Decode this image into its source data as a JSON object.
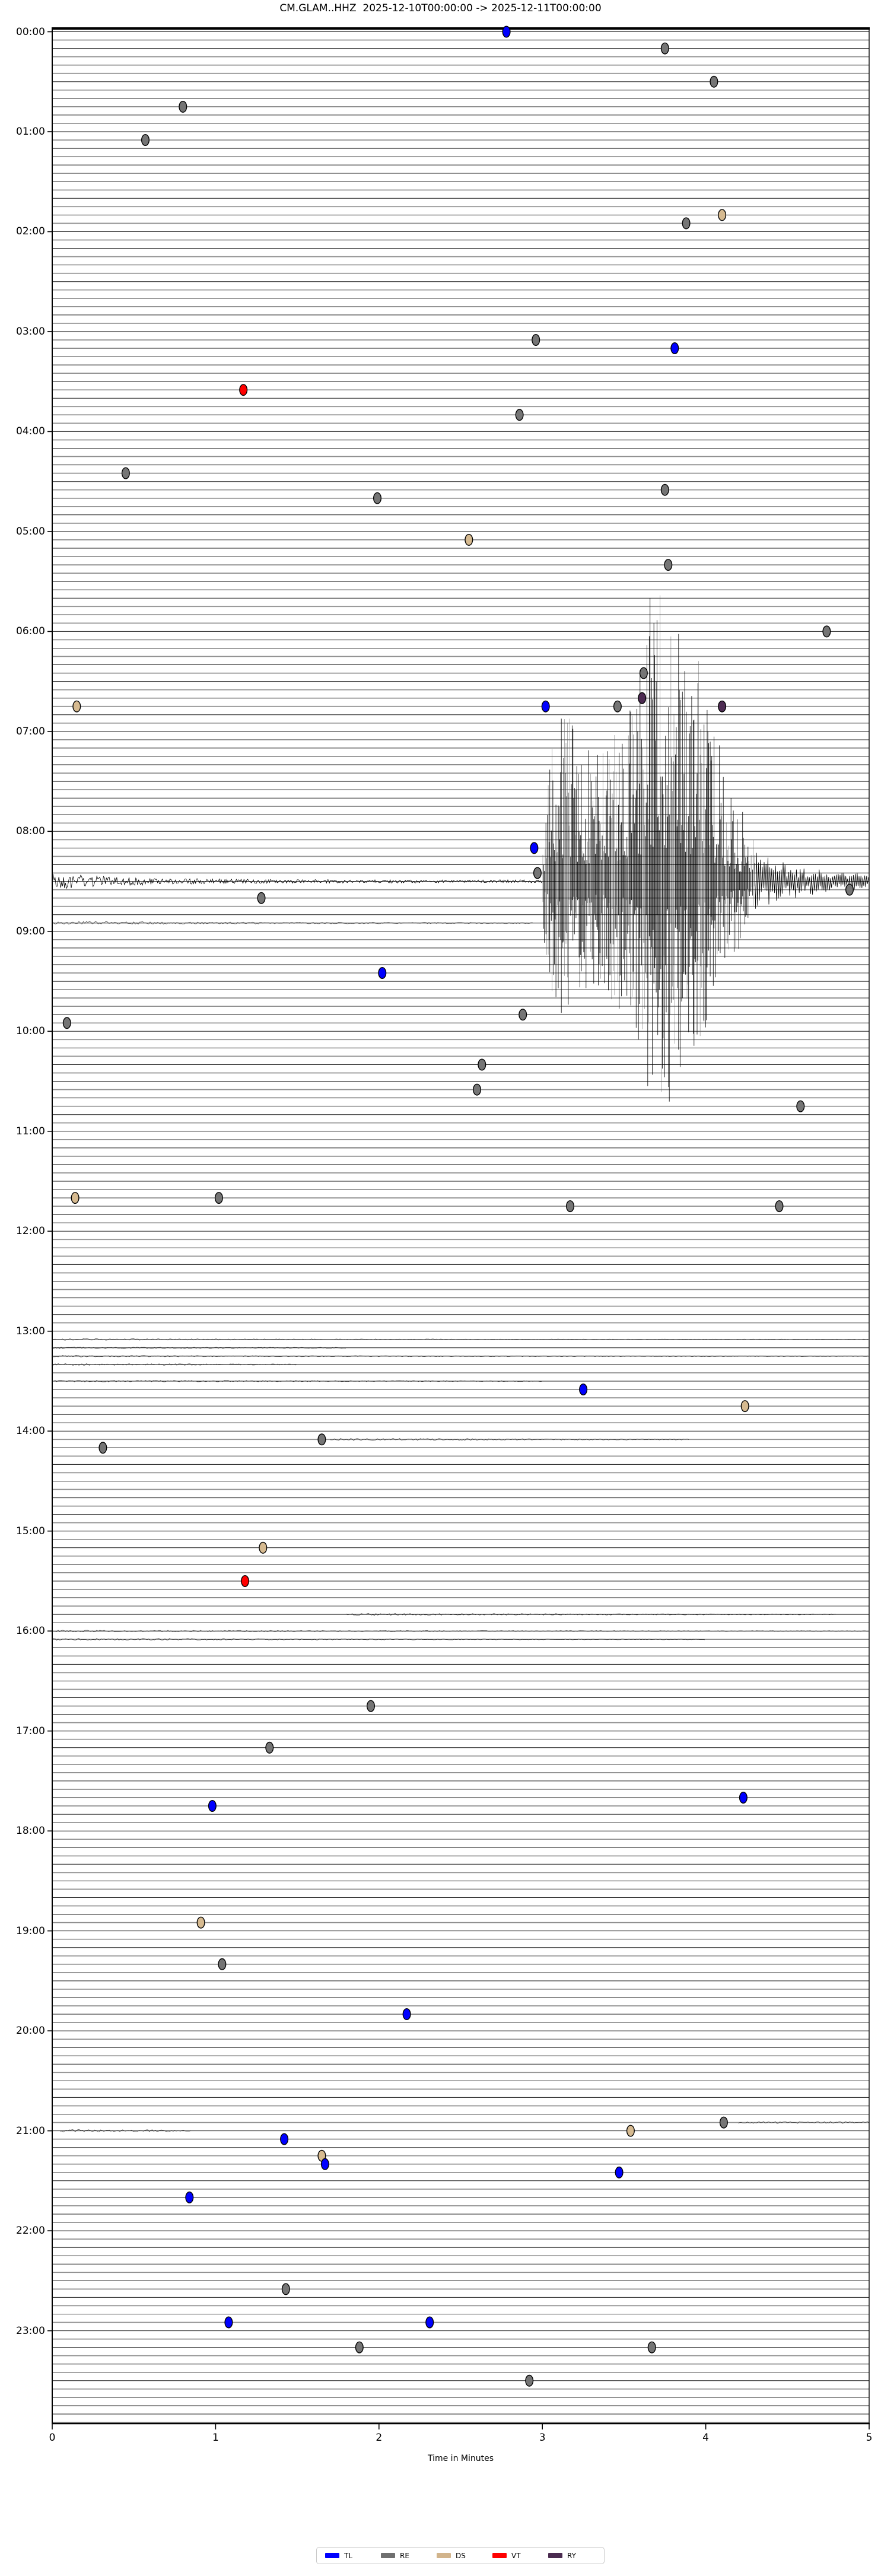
{
  "title": "CM.GLAM..HHZ  2025-12-10T00:00:00 -> 2025-12-11T00:00:00",
  "axes": {
    "xlabel": "Time in Minutes",
    "x_ticks": [
      "0",
      "1",
      "2",
      "3",
      "4",
      "5"
    ],
    "y_ticks": [
      "00:00",
      "01:00",
      "02:00",
      "03:00",
      "04:00",
      "05:00",
      "06:00",
      "07:00",
      "08:00",
      "09:00",
      "10:00",
      "11:00",
      "12:00",
      "13:00",
      "14:00",
      "15:00",
      "16:00",
      "17:00",
      "18:00",
      "19:00",
      "20:00",
      "21:00",
      "22:00",
      "23:00"
    ]
  },
  "legend": {
    "items": [
      {
        "label": "TL",
        "color": "#0000ff"
      },
      {
        "label": "RE",
        "color": "#6f6f6f"
      },
      {
        "label": "DS",
        "color": "#d2b48c"
      },
      {
        "label": "VT",
        "color": "#ff0000"
      },
      {
        "label": "RY",
        "color": "#4a2b50"
      }
    ]
  },
  "chart_data": {
    "type": "line",
    "subtype": "helicorder-dayplot",
    "station": "CM.GLAM..HHZ",
    "start": "2025-12-10T00:00:00",
    "end": "2025-12-11T00:00:00",
    "x_range_minutes": [
      0,
      5
    ],
    "row_duration_minutes": 5,
    "n_rows": 288,
    "grid": "horizontal trace lines, alternating dark/grey",
    "legend_position": "bottom-center",
    "marker_classes": {
      "TL": "#0000ff",
      "RE": "#757575",
      "DS": "#d6ba90",
      "VT": "#ff0000",
      "RY": "#4d2b52"
    },
    "event_markers": [
      {
        "t": "00:00",
        "m": 2.78,
        "c": "TL"
      },
      {
        "t": "00:10",
        "m": 3.75,
        "c": "RE"
      },
      {
        "t": "00:30",
        "m": 4.05,
        "c": "RE"
      },
      {
        "t": "00:45",
        "m": 0.8,
        "c": "RE"
      },
      {
        "t": "01:05",
        "m": 0.57,
        "c": "RE"
      },
      {
        "t": "01:50",
        "m": 4.1,
        "c": "DS"
      },
      {
        "t": "01:55",
        "m": 3.88,
        "c": "RE"
      },
      {
        "t": "03:05",
        "m": 2.96,
        "c": "RE"
      },
      {
        "t": "03:10",
        "m": 3.81,
        "c": "TL"
      },
      {
        "t": "03:35",
        "m": 1.17,
        "c": "VT"
      },
      {
        "t": "03:50",
        "m": 2.86,
        "c": "RE"
      },
      {
        "t": "04:25",
        "m": 0.45,
        "c": "RE"
      },
      {
        "t": "04:35",
        "m": 3.75,
        "c": "RE"
      },
      {
        "t": "04:40",
        "m": 1.99,
        "c": "RE"
      },
      {
        "t": "05:05",
        "m": 2.55,
        "c": "DS"
      },
      {
        "t": "05:20",
        "m": 3.77,
        "c": "RE"
      },
      {
        "t": "06:00",
        "m": 4.74,
        "c": "RE"
      },
      {
        "t": "06:25",
        "m": 3.62,
        "c": "RE"
      },
      {
        "t": "06:40",
        "m": 3.61,
        "c": "RY"
      },
      {
        "t": "06:45",
        "m": 0.15,
        "c": "DS"
      },
      {
        "t": "06:45",
        "m": 3.02,
        "c": "TL"
      },
      {
        "t": "06:45",
        "m": 3.46,
        "c": "RE"
      },
      {
        "t": "06:45",
        "m": 4.1,
        "c": "RY"
      },
      {
        "t": "08:10",
        "m": 2.95,
        "c": "TL"
      },
      {
        "t": "08:25",
        "m": 2.97,
        "c": "RE"
      },
      {
        "t": "08:35",
        "m": 4.88,
        "c": "RE"
      },
      {
        "t": "08:40",
        "m": 1.28,
        "c": "RE"
      },
      {
        "t": "09:25",
        "m": 2.02,
        "c": "TL"
      },
      {
        "t": "09:50",
        "m": 2.88,
        "c": "RE"
      },
      {
        "t": "09:55",
        "m": 0.09,
        "c": "RE"
      },
      {
        "t": "10:20",
        "m": 2.63,
        "c": "RE"
      },
      {
        "t": "10:35",
        "m": 2.6,
        "c": "RE"
      },
      {
        "t": "10:45",
        "m": 4.58,
        "c": "RE"
      },
      {
        "t": "11:40",
        "m": 0.14,
        "c": "DS"
      },
      {
        "t": "11:40",
        "m": 1.02,
        "c": "RE"
      },
      {
        "t": "11:45",
        "m": 3.17,
        "c": "RE"
      },
      {
        "t": "11:45",
        "m": 4.45,
        "c": "RE"
      },
      {
        "t": "13:35",
        "m": 3.25,
        "c": "TL"
      },
      {
        "t": "13:45",
        "m": 4.24,
        "c": "DS"
      },
      {
        "t": "14:05",
        "m": 1.65,
        "c": "RE"
      },
      {
        "t": "14:10",
        "m": 0.31,
        "c": "RE"
      },
      {
        "t": "15:10",
        "m": 1.29,
        "c": "DS"
      },
      {
        "t": "15:30",
        "m": 1.18,
        "c": "VT"
      },
      {
        "t": "16:45",
        "m": 1.95,
        "c": "RE"
      },
      {
        "t": "17:10",
        "m": 1.33,
        "c": "RE"
      },
      {
        "t": "17:40",
        "m": 4.23,
        "c": "TL"
      },
      {
        "t": "17:45",
        "m": 0.98,
        "c": "TL"
      },
      {
        "t": "18:55",
        "m": 0.91,
        "c": "DS"
      },
      {
        "t": "19:20",
        "m": 1.04,
        "c": "RE"
      },
      {
        "t": "19:50",
        "m": 2.17,
        "c": "TL"
      },
      {
        "t": "20:55",
        "m": 4.11,
        "c": "RE"
      },
      {
        "t": "21:00",
        "m": 3.54,
        "c": "DS"
      },
      {
        "t": "21:05",
        "m": 1.42,
        "c": "TL"
      },
      {
        "t": "21:15",
        "m": 1.65,
        "c": "DS"
      },
      {
        "t": "21:20",
        "m": 1.67,
        "c": "TL"
      },
      {
        "t": "21:25",
        "m": 3.47,
        "c": "TL"
      },
      {
        "t": "21:40",
        "m": 0.84,
        "c": "TL"
      },
      {
        "t": "22:35",
        "m": 1.43,
        "c": "RE"
      },
      {
        "t": "22:55",
        "m": 1.08,
        "c": "TL"
      },
      {
        "t": "22:55",
        "m": 2.31,
        "c": "TL"
      },
      {
        "t": "23:10",
        "m": 1.88,
        "c": "RE"
      },
      {
        "t": "23:10",
        "m": 3.67,
        "c": "RE"
      },
      {
        "t": "23:30",
        "m": 2.92,
        "c": "RE"
      }
    ],
    "main_event": {
      "row": "08:30",
      "pre_noise_from_minute": 0.0,
      "onset_minute": 3.0,
      "peak_minute": 3.7,
      "coda_to_minute": 5.0,
      "spikes_span_rows": "05:20 to 10:45",
      "after_row": "08:55",
      "description": "Large clipped seismic event on the 08:30 trace: elevated background noise from line start, violent burst beginning near minute 3.0 whose spikes overshoot many neighbouring rows, decaying coda to the line end and a weak continuation on the 08:55 line."
    },
    "noise_bands": [
      {
        "row": "08:55",
        "from": 0.0,
        "to": 2.95,
        "amp": 2.4
      },
      {
        "row": "13:05",
        "from": 0.0,
        "to": 5.0,
        "amp": 1.1
      },
      {
        "row": "13:10",
        "from": 0.0,
        "to": 1.8,
        "amp": 1.2
      },
      {
        "row": "13:15",
        "from": 0.0,
        "to": 5.0,
        "amp": 1.0
      },
      {
        "row": "13:20",
        "from": 0.0,
        "to": 1.5,
        "amp": 1.2
      },
      {
        "row": "13:30",
        "from": 0.0,
        "to": 3.0,
        "amp": 1.0
      },
      {
        "row": "14:05",
        "from": 1.7,
        "to": 3.9,
        "amp": 1.5
      },
      {
        "row": "15:50",
        "from": 1.8,
        "to": 4.8,
        "amp": 1.5
      },
      {
        "row": "16:00",
        "from": 0.0,
        "to": 5.0,
        "amp": 1.2
      },
      {
        "row": "16:05",
        "from": 0.0,
        "to": 4.0,
        "amp": 1.5
      },
      {
        "row": "20:55",
        "from": 4.2,
        "to": 5.0,
        "amp": 1.5
      },
      {
        "row": "21:00",
        "from": 0.05,
        "to": 0.85,
        "amp": 1.8
      }
    ]
  }
}
